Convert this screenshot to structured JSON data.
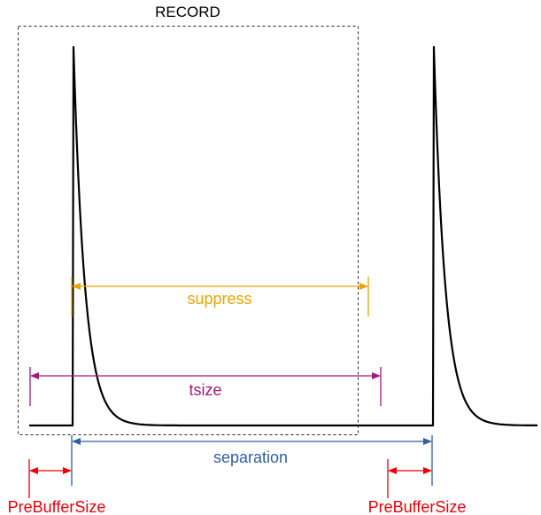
{
  "record": {
    "label": "RECORD"
  },
  "suppress": {
    "label": "suppress",
    "color": "#e8a500"
  },
  "tsize": {
    "label": "tsize",
    "color": "#a3177f"
  },
  "separation": {
    "label": "separation",
    "color": "#2e5fa1"
  },
  "prebuffer_left": {
    "label": "PreBufferSize",
    "color": "#e8000b"
  },
  "prebuffer_right": {
    "label": "PreBufferSize",
    "color": "#e8000b"
  },
  "waveform": {
    "color": "#000000"
  }
}
